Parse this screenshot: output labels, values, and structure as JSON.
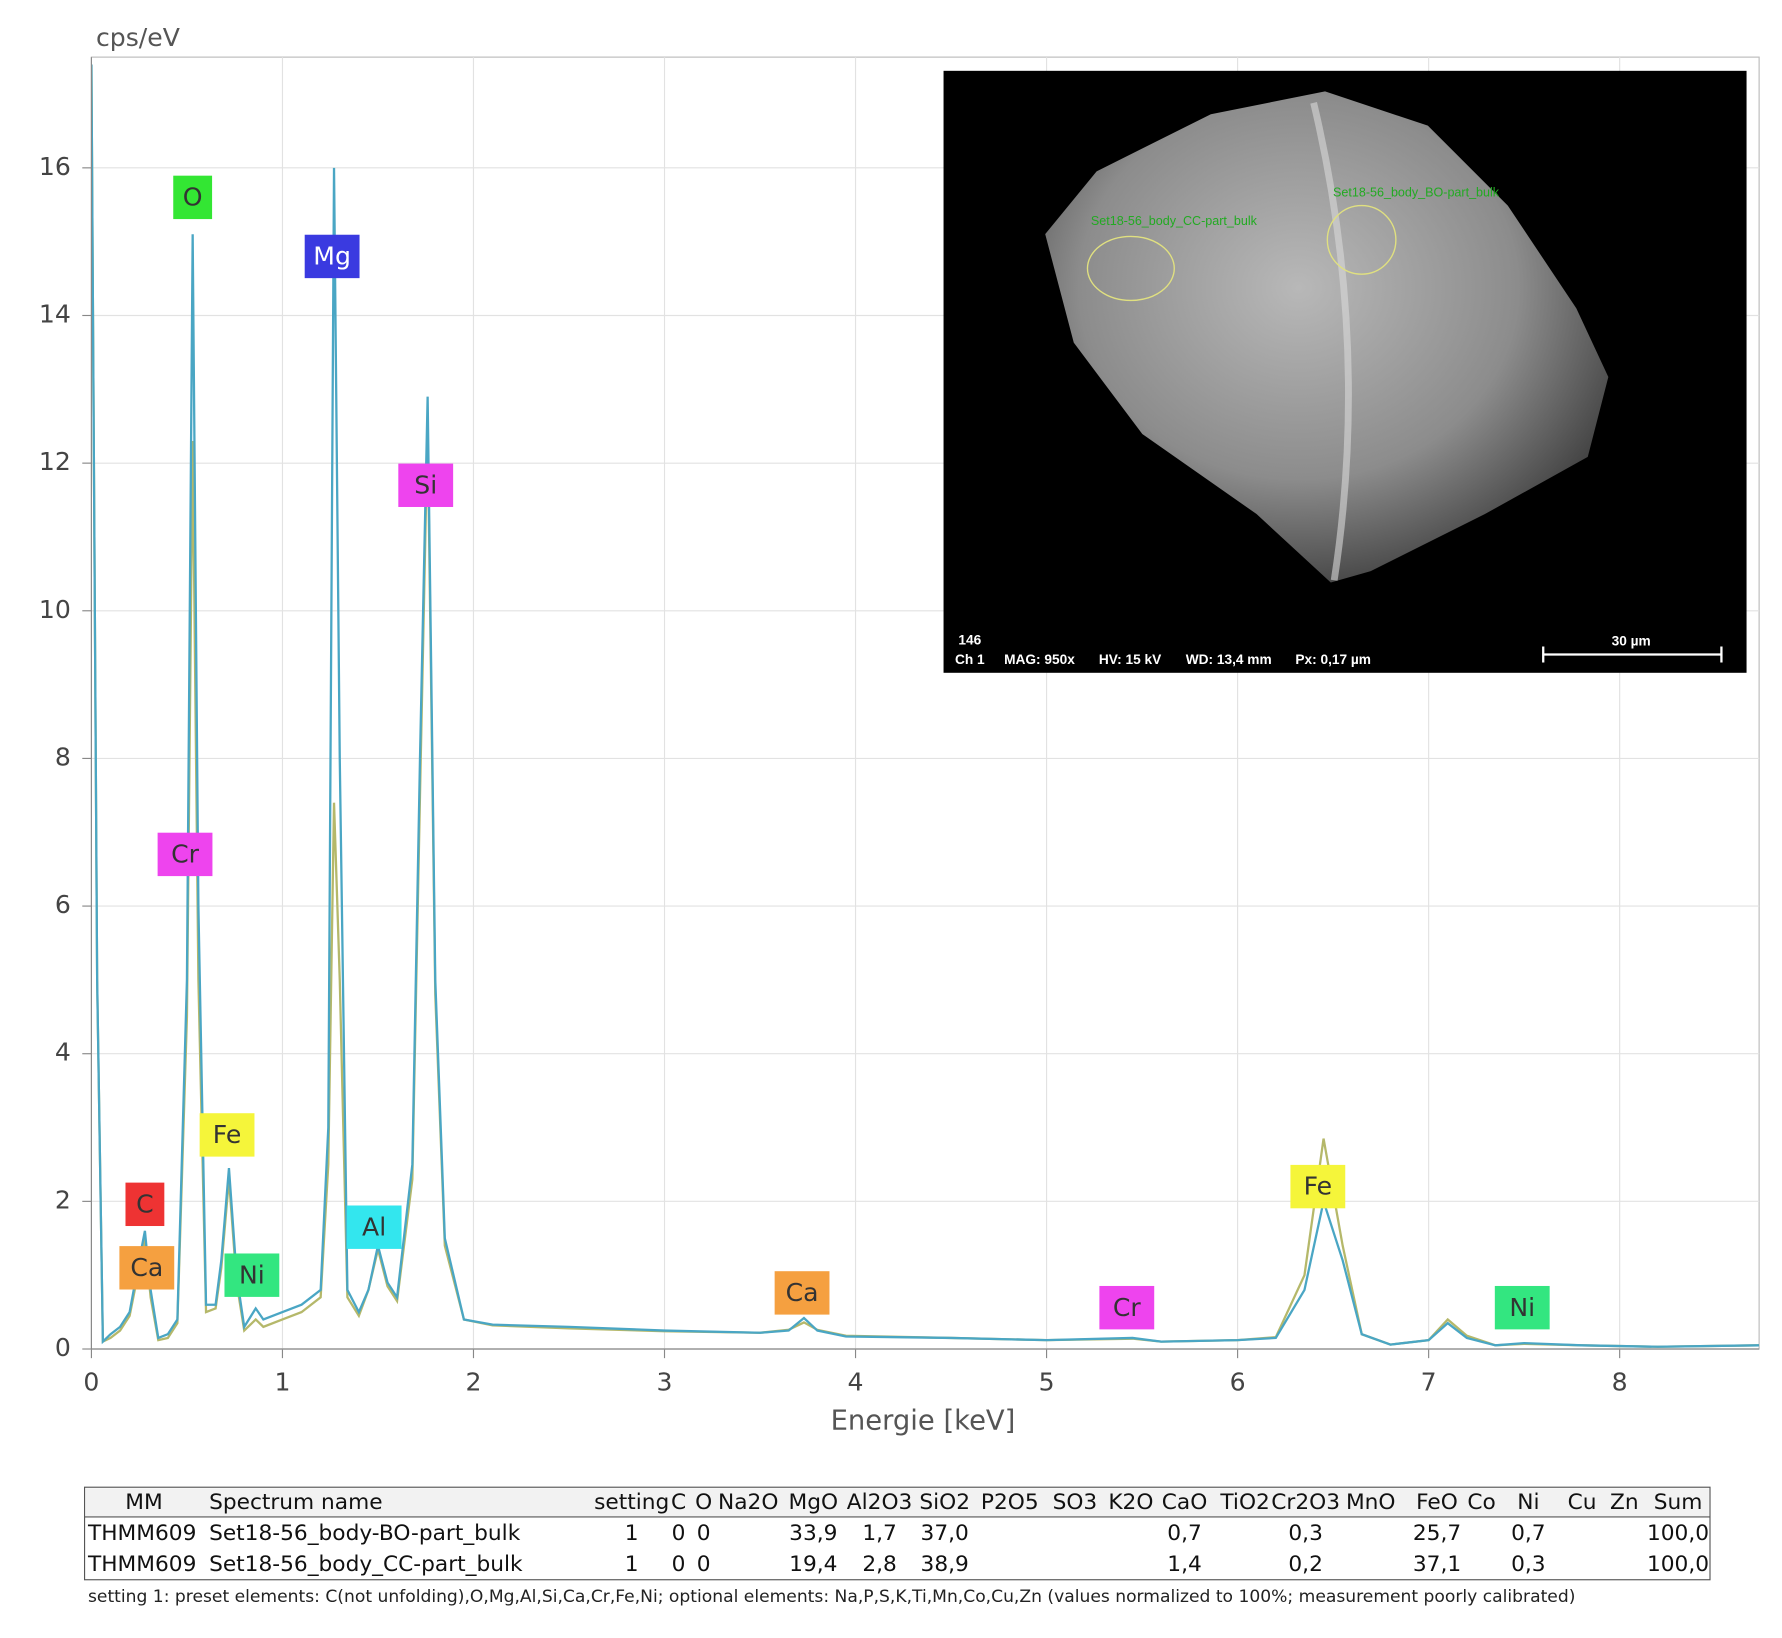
{
  "chart_data": {
    "type": "line",
    "ylabel": "cps/eV",
    "xlabel": "Energie [keV]",
    "xlim": [
      0,
      8.73
    ],
    "ylim": [
      0,
      17.5
    ],
    "xticks": [
      0,
      1,
      2,
      3,
      4,
      5,
      6,
      7,
      8
    ],
    "yticks": [
      0,
      2,
      4,
      6,
      8,
      10,
      12,
      14,
      16
    ],
    "grid": true,
    "x": [
      0.0,
      0.03,
      0.06,
      0.1,
      0.15,
      0.2,
      0.25,
      0.28,
      0.31,
      0.35,
      0.4,
      0.45,
      0.5,
      0.53,
      0.56,
      0.6,
      0.65,
      0.68,
      0.72,
      0.76,
      0.8,
      0.86,
      0.9,
      1.0,
      1.1,
      1.2,
      1.24,
      1.27,
      1.3,
      1.34,
      1.4,
      1.45,
      1.5,
      1.55,
      1.6,
      1.68,
      1.72,
      1.76,
      1.8,
      1.85,
      1.95,
      2.1,
      2.5,
      3.0,
      3.5,
      3.65,
      3.73,
      3.8,
      3.95,
      4.5,
      5.0,
      5.45,
      5.6,
      6.0,
      6.2,
      6.35,
      6.45,
      6.55,
      6.65,
      6.8,
      7.0,
      7.1,
      7.2,
      7.35,
      7.5,
      7.8,
      8.2,
      8.73
    ],
    "series": [
      {
        "color": "#b5b86a",
        "values": [
          17.4,
          5,
          0.1,
          0.15,
          0.25,
          0.45,
          1.1,
          1.5,
          0.7,
          0.12,
          0.15,
          0.35,
          4.5,
          12.3,
          5,
          0.5,
          0.55,
          1.1,
          2.3,
          0.9,
          0.25,
          0.4,
          0.3,
          0.4,
          0.5,
          0.7,
          2.5,
          7.4,
          5,
          0.7,
          0.45,
          0.8,
          1.35,
          0.85,
          0.65,
          2.3,
          7.5,
          12.5,
          4.8,
          1.4,
          0.4,
          0.32,
          0.28,
          0.24,
          0.22,
          0.26,
          0.36,
          0.26,
          0.18,
          0.15,
          0.12,
          0.14,
          0.1,
          0.12,
          0.16,
          1.0,
          2.85,
          1.4,
          0.2,
          0.06,
          0.12,
          0.4,
          0.18,
          0.05,
          0.07,
          0.05,
          0.03,
          0.05
        ]
      },
      {
        "color": "#4aa6c4",
        "values": [
          17.4,
          5,
          0.1,
          0.2,
          0.3,
          0.5,
          1.2,
          1.6,
          0.8,
          0.15,
          0.2,
          0.4,
          5,
          15.1,
          6,
          0.6,
          0.6,
          1.2,
          2.45,
          1.0,
          0.3,
          0.55,
          0.4,
          0.5,
          0.6,
          0.8,
          3,
          16.0,
          8,
          0.8,
          0.5,
          0.8,
          1.4,
          0.9,
          0.7,
          2.5,
          8,
          12.9,
          5,
          1.5,
          0.4,
          0.33,
          0.3,
          0.25,
          0.22,
          0.25,
          0.42,
          0.25,
          0.17,
          0.15,
          0.12,
          0.15,
          0.1,
          0.12,
          0.15,
          0.8,
          2.0,
          1.2,
          0.2,
          0.06,
          0.12,
          0.35,
          0.15,
          0.05,
          0.08,
          0.05,
          0.03,
          0.05
        ]
      }
    ],
    "annotations": [
      {
        "text": "O",
        "x": 0.53,
        "y": 15.6,
        "color": "#33e633",
        "text_color": "#333333"
      },
      {
        "text": "Mg",
        "x": 1.26,
        "y": 14.8,
        "color": "#3a3ae0",
        "text_color": "#ffffff"
      },
      {
        "text": "Si",
        "x": 1.75,
        "y": 11.7,
        "color": "#ee44ee",
        "text_color": "#333333"
      },
      {
        "text": "Cr",
        "x": 0.49,
        "y": 6.7,
        "color": "#ee44ee",
        "text_color": "#333333"
      },
      {
        "text": "Fe",
        "x": 0.71,
        "y": 2.9,
        "color": "#f5f53a",
        "text_color": "#333333"
      },
      {
        "text": "C",
        "x": 0.28,
        "y": 1.96,
        "color": "#ee3333",
        "text_color": "#333333"
      },
      {
        "text": "Ca",
        "x": 0.29,
        "y": 1.1,
        "color": "#f5a040",
        "text_color": "#333333"
      },
      {
        "text": "Ni",
        "x": 0.84,
        "y": 1.0,
        "color": "#33e680",
        "text_color": "#333333"
      },
      {
        "text": "Al",
        "x": 1.48,
        "y": 1.65,
        "color": "#33e6ee",
        "text_color": "#333333"
      },
      {
        "text": "Ca",
        "x": 3.72,
        "y": 0.76,
        "color": "#f5a040",
        "text_color": "#333333"
      },
      {
        "text": "Cr",
        "x": 5.42,
        "y": 0.56,
        "color": "#ee44ee",
        "text_color": "#333333"
      },
      {
        "text": "Fe",
        "x": 6.42,
        "y": 2.2,
        "color": "#f5f53a",
        "text_color": "#333333"
      },
      {
        "text": "Ni",
        "x": 7.49,
        "y": 0.56,
        "color": "#33e680",
        "text_color": "#333333"
      }
    ]
  },
  "inset": {
    "region_labels": [
      "Set18-56_body_CC-part_bulk",
      "Set18-56_body_BO-part_bulk"
    ],
    "info": [
      "146",
      "Ch 1",
      "MAG: 950x",
      "HV: 15 kV",
      "WD: 13,4 mm",
      "Px: 0,17 µm"
    ],
    "scale_bar": "30 µm"
  },
  "table": {
    "header": [
      "MM",
      "Spectrum name",
      "setting",
      "C",
      "O",
      "Na2O",
      "MgO",
      "Al2O3",
      "SiO2",
      "P2O5",
      "SO3",
      "K2O",
      "CaO",
      "TiO2",
      "Cr2O3",
      "MnO",
      "FeO",
      "Co",
      "Ni",
      "Cu",
      "Zn",
      "Sum"
    ],
    "rows": [
      [
        "THMM609",
        "Set18-56_body-BO-part_bulk",
        "1",
        "0",
        "0",
        null,
        "33,9",
        "1,7",
        "37,0",
        null,
        null,
        null,
        "0,7",
        null,
        "0,3",
        null,
        "25,7",
        null,
        "0,7",
        null,
        null,
        "100,0"
      ],
      [
        "THMM609",
        "Set18-56_body_CC-part_bulk",
        "1",
        "0",
        "0",
        null,
        "19,4",
        "2,8",
        "38,9",
        null,
        null,
        null,
        "1,4",
        null,
        "0,2",
        null,
        "37,1",
        null,
        "0,3",
        null,
        null,
        "100,0"
      ]
    ],
    "footnote": "setting 1: preset elements: C(not unfolding),O,Mg,Al,Si,Ca,Cr,Fe,Ni; optional elements: Na,P,S,K,Ti,Mn,Co,Cu,Zn (values normalized to 100%; measurement poorly calibrated)"
  }
}
